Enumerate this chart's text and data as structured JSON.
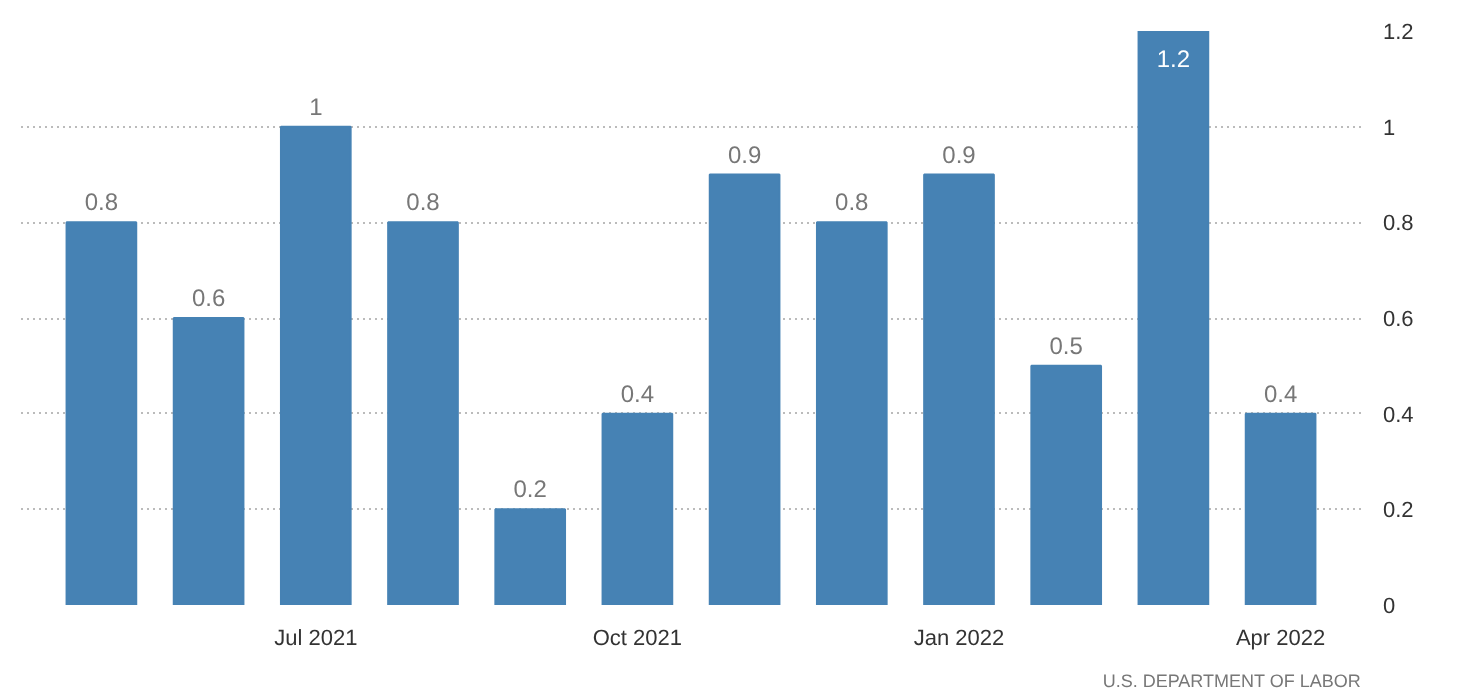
{
  "chart_data": {
    "type": "bar",
    "categories": [
      null,
      null,
      "Jul 2021",
      null,
      null,
      "Oct 2021",
      null,
      null,
      "Jan 2022",
      null,
      null,
      "Apr 2022"
    ],
    "values": [
      0.8,
      0.6,
      1,
      0.8,
      0.2,
      0.4,
      0.9,
      0.8,
      0.9,
      0.5,
      1.2,
      0.4
    ],
    "value_labels": [
      "0.8",
      "0.6",
      "1",
      "0.8",
      "0.2",
      "0.4",
      "0.9",
      "0.8",
      "0.9",
      "0.5",
      "1.2",
      "0.4"
    ],
    "color": "#4682b4",
    "ylim": [
      0,
      1.2
    ],
    "yticks": [
      0,
      0.2,
      0.4,
      0.6,
      0.8,
      1,
      1.2
    ],
    "grid": "y",
    "annotations": [
      "U.S. DEPARTMENT OF LABOR"
    ]
  }
}
